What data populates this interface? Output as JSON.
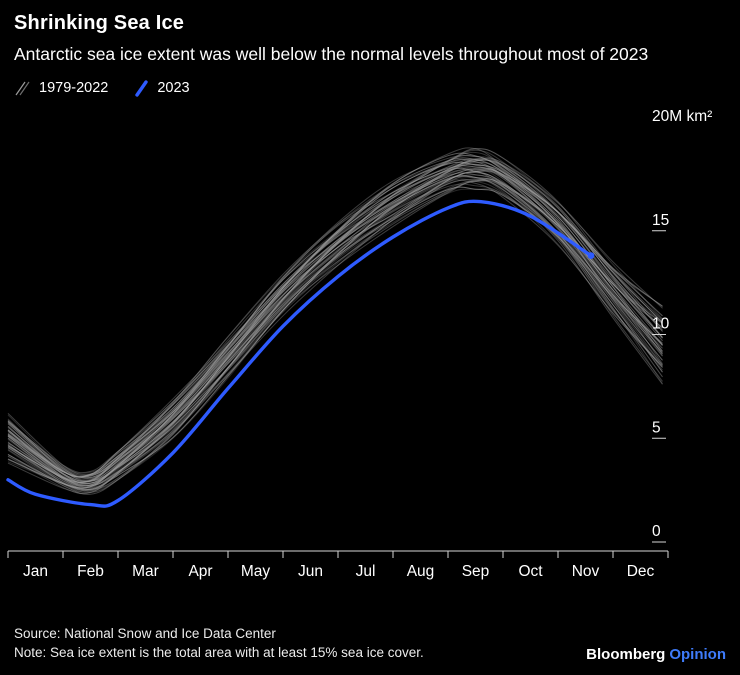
{
  "header": {
    "title": "Shrinking Sea Ice",
    "subtitle": "Antarctic sea ice extent was well below the normal levels throughout most of 2023"
  },
  "legend": [
    {
      "label": "1979-2022",
      "color": "#9c9c9c"
    },
    {
      "label": "2023",
      "color": "#2e5bff"
    }
  ],
  "colors": {
    "background": "#000000",
    "text": "#ffffff",
    "historical_lines": "#9c9c9c",
    "line_2023": "#2e5bff",
    "axis": "#d6d6d6",
    "tick_label": "#ffffff",
    "brand_accent": "#3e7bfa"
  },
  "chart_data": {
    "type": "line",
    "title": "Shrinking Sea Ice",
    "x_unit": "month",
    "x_tick_labels": [
      "Jan",
      "Feb",
      "Mar",
      "Apr",
      "May",
      "Jun",
      "Jul",
      "Aug",
      "Sep",
      "Oct",
      "Nov",
      "Dec"
    ],
    "ylim": [
      0,
      20
    ],
    "y_ticks": [
      0,
      5,
      10,
      15
    ],
    "y_top_label": "20M km²",
    "grid": false,
    "legend_position": "top-left",
    "series": [
      {
        "name": "1979-2022",
        "style": "band-of-lines",
        "line_count": 44,
        "color": "#9c9c9c",
        "x": [
          0,
          1,
          1.5,
          2,
          3,
          4,
          5,
          6,
          7,
          8,
          8.5,
          9,
          10,
          11,
          11.9
        ],
        "min": [
          3.8,
          2.6,
          2.3,
          3.0,
          5.0,
          7.9,
          10.9,
          13.3,
          15.2,
          16.8,
          17.0,
          16.6,
          14.3,
          10.8,
          7.6
        ],
        "max": [
          6.2,
          3.7,
          3.4,
          4.4,
          6.9,
          9.9,
          12.9,
          15.4,
          17.4,
          18.7,
          19.0,
          18.5,
          16.4,
          13.5,
          11.4
        ]
      },
      {
        "name": "2023",
        "style": "line",
        "color": "#2e5bff",
        "x": [
          0,
          0.5,
          1.5,
          2,
          3,
          4,
          5,
          6,
          7,
          8,
          8.6,
          9.5,
          10.6
        ],
        "values": [
          3.0,
          2.3,
          1.8,
          2.0,
          4.3,
          7.4,
          10.4,
          12.8,
          14.7,
          16.1,
          16.4,
          15.7,
          13.8
        ]
      }
    ]
  },
  "footer": {
    "source": "Source: National Snow and Ice Data Center",
    "note": "Note: Sea ice extent is the total area with at least 15% sea ice cover.",
    "brand": "Bloomberg",
    "brand_suffix": "Opinion"
  }
}
